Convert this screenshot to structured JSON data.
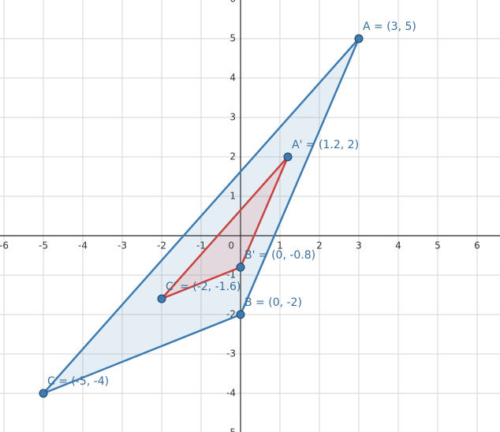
{
  "chart_data": {
    "type": "polygon",
    "xlim": [
      -6.1,
      6.58
    ],
    "ylim": [
      -4.98,
      5.98
    ],
    "xticks": [
      -6,
      -5,
      -4,
      -3,
      -2,
      -1,
      0,
      1,
      2,
      3,
      4,
      5,
      6
    ],
    "yticks": [
      -5,
      -4,
      -3,
      -2,
      -1,
      1,
      2,
      3,
      4,
      5,
      6
    ],
    "grid": true,
    "polygons": [
      {
        "color": "#3d7cb3",
        "fill": "#3d7cb3",
        "points": [
          {
            "x": 3,
            "y": 5,
            "label": "A = (3, 5)"
          },
          {
            "x": 0,
            "y": -2,
            "label": "B = (0, -2)"
          },
          {
            "x": -5,
            "y": -4,
            "label": "C = (-5, -4)"
          }
        ]
      },
      {
        "color": "#c74440",
        "fill": "#c74440",
        "points": [
          {
            "x": 1.2,
            "y": 2,
            "label": "A' = (1.2, 2)"
          },
          {
            "x": 0,
            "y": -0.8,
            "label": "B' = (0, -0.8)"
          },
          {
            "x": -2,
            "y": -1.6,
            "label": "C' = (-2, -1.6)"
          }
        ]
      }
    ]
  }
}
